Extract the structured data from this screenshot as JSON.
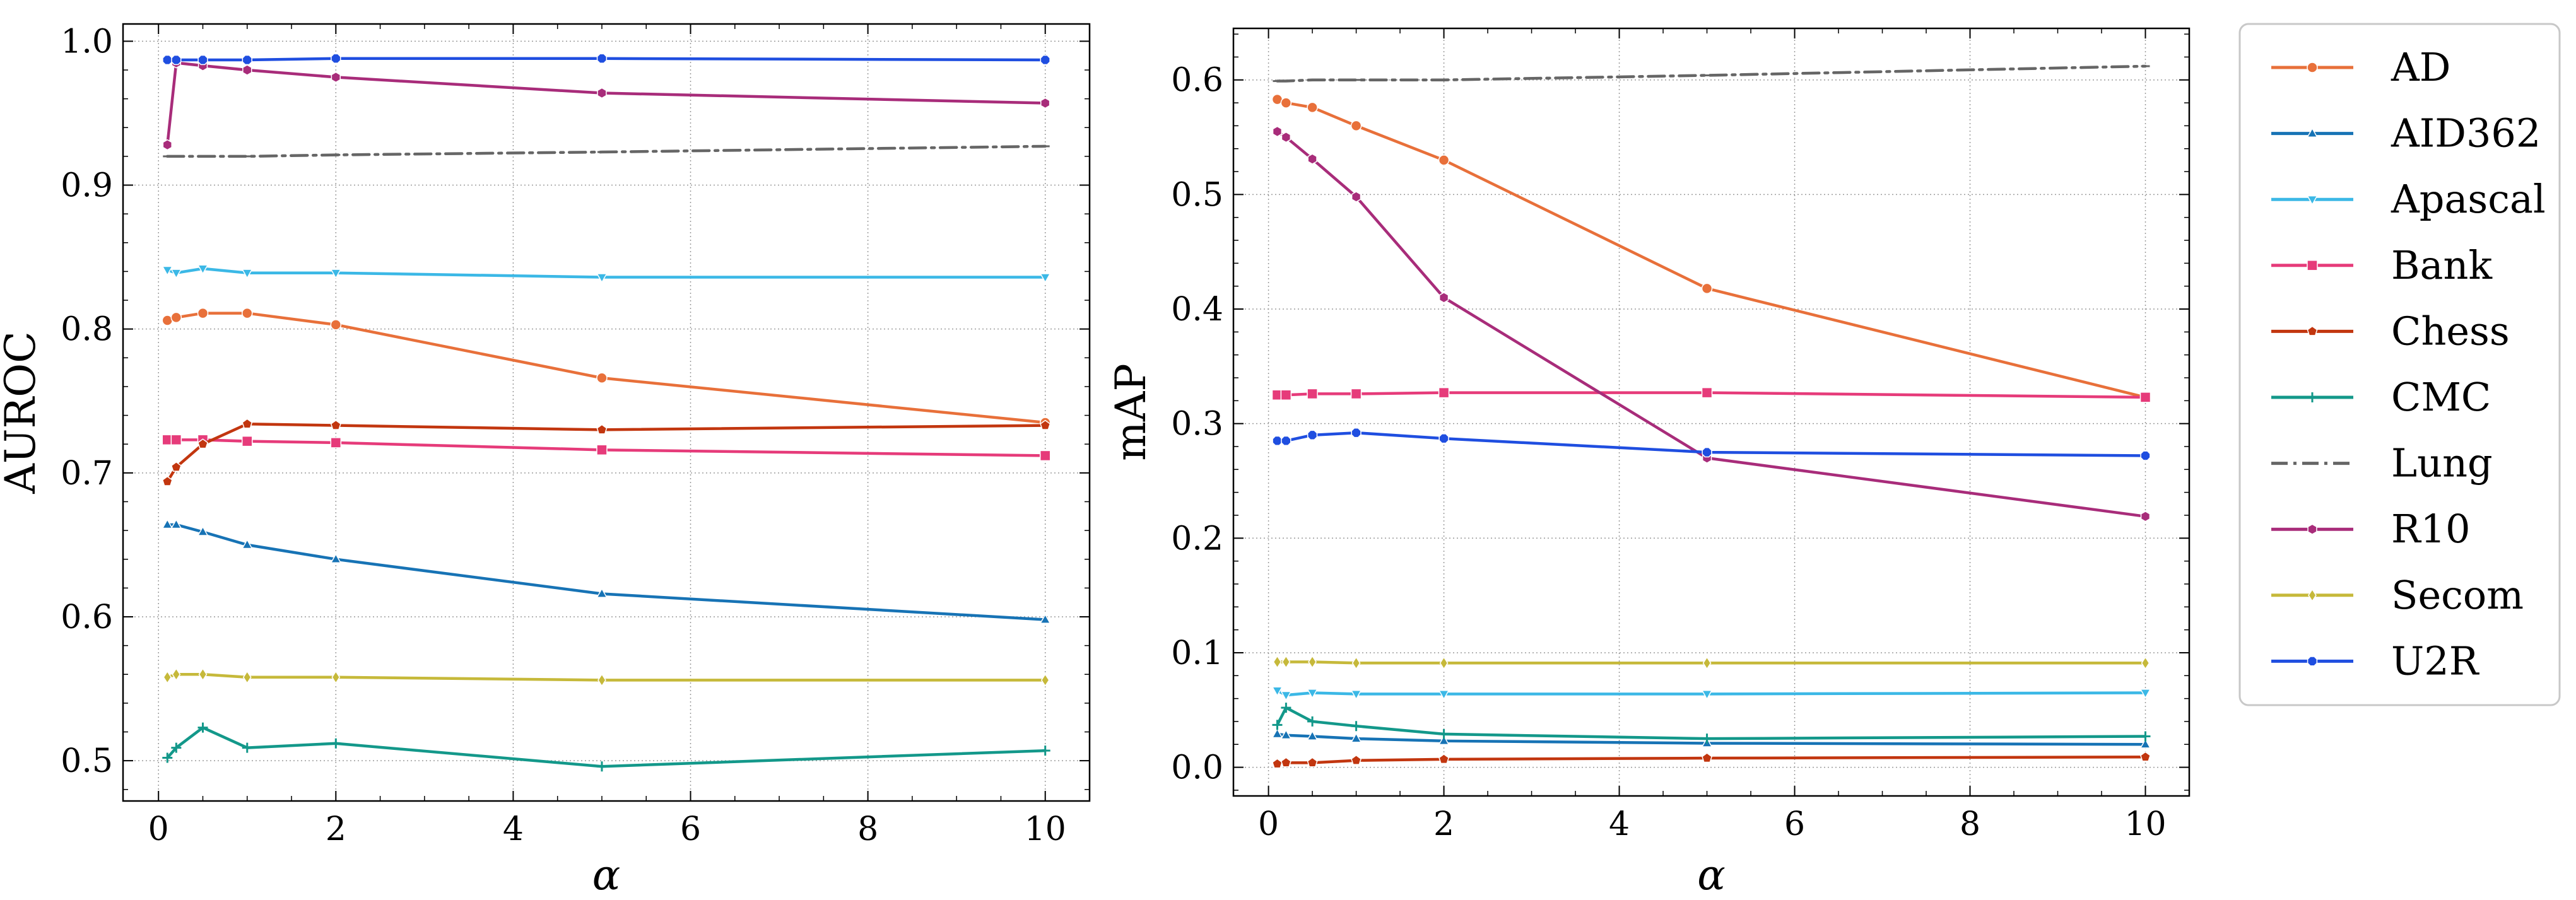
{
  "chart_data": [
    {
      "type": "line",
      "ylabel": "AUROC",
      "xlabel": "α",
      "xlim": [
        -0.4,
        10.5
      ],
      "ylim": [
        0.472,
        1.012
      ],
      "xticks": [
        0,
        2,
        4,
        6,
        8,
        10
      ],
      "xtick_labels": [
        "0",
        "2",
        "4",
        "6",
        "8",
        "10"
      ],
      "yticks": [
        0.5,
        0.6,
        0.7,
        0.8,
        0.9,
        1.0
      ],
      "ytick_labels": [
        "0.5",
        "0.6",
        "0.7",
        "0.8",
        "0.9",
        "1.0"
      ],
      "grid": true,
      "x": [
        0.1,
        0.2,
        0.5,
        1,
        2,
        5,
        10
      ],
      "series": [
        {
          "name": "AD",
          "values": [
            0.806,
            0.808,
            0.811,
            0.811,
            0.803,
            0.766,
            0.735
          ]
        },
        {
          "name": "AID362",
          "values": [
            0.664,
            0.664,
            0.659,
            0.65,
            0.64,
            0.616,
            0.598
          ]
        },
        {
          "name": "Apascal",
          "values": [
            0.841,
            0.839,
            0.842,
            0.839,
            0.839,
            0.836,
            0.836
          ]
        },
        {
          "name": "Bank",
          "values": [
            0.723,
            0.723,
            0.723,
            0.722,
            0.721,
            0.716,
            0.712
          ]
        },
        {
          "name": "Chess",
          "values": [
            0.694,
            0.704,
            0.72,
            0.734,
            0.733,
            0.73,
            0.733
          ]
        },
        {
          "name": "CMC",
          "values": [
            0.502,
            0.509,
            0.523,
            0.509,
            0.512,
            0.496,
            0.507
          ]
        },
        {
          "name": "Lung",
          "values": [
            0.92,
            0.92,
            0.92,
            0.92,
            0.921,
            0.923,
            0.927
          ]
        },
        {
          "name": "R10",
          "values": [
            0.928,
            0.985,
            0.983,
            0.98,
            0.975,
            0.964,
            0.957
          ]
        },
        {
          "name": "Secom",
          "values": [
            0.558,
            0.56,
            0.56,
            0.558,
            0.558,
            0.556,
            0.556
          ]
        },
        {
          "name": "U2R",
          "values": [
            0.987,
            0.987,
            0.987,
            0.987,
            0.988,
            0.988,
            0.987
          ]
        }
      ]
    },
    {
      "type": "line",
      "ylabel": "mAP",
      "xlabel": "α",
      "xlim": [
        -0.4,
        10.5
      ],
      "ylim": [
        -0.025,
        0.645
      ],
      "xticks": [
        0,
        2,
        4,
        6,
        8,
        10
      ],
      "xtick_labels": [
        "0",
        "2",
        "4",
        "6",
        "8",
        "10"
      ],
      "yticks": [
        0.0,
        0.1,
        0.2,
        0.3,
        0.4,
        0.5,
        0.6
      ],
      "ytick_labels": [
        "0.0",
        "0.1",
        "0.2",
        "0.3",
        "0.4",
        "0.5",
        "0.6"
      ],
      "grid": true,
      "x": [
        0.1,
        0.2,
        0.5,
        1,
        2,
        5,
        10
      ],
      "series": [
        {
          "name": "AD",
          "values": [
            0.583,
            0.58,
            0.576,
            0.56,
            0.53,
            0.418,
            0.323
          ]
        },
        {
          "name": "AID362",
          "values": [
            0.029,
            0.028,
            0.027,
            0.025,
            0.023,
            0.021,
            0.02
          ]
        },
        {
          "name": "Apascal",
          "values": [
            0.067,
            0.063,
            0.065,
            0.064,
            0.064,
            0.064,
            0.065
          ]
        },
        {
          "name": "Bank",
          "values": [
            0.325,
            0.325,
            0.326,
            0.326,
            0.327,
            0.327,
            0.323
          ]
        },
        {
          "name": "Chess",
          "values": [
            0.003,
            0.004,
            0.004,
            0.006,
            0.007,
            0.008,
            0.009
          ]
        },
        {
          "name": "CMC",
          "values": [
            0.037,
            0.052,
            0.04,
            0.036,
            0.029,
            0.025,
            0.027
          ]
        },
        {
          "name": "Lung",
          "values": [
            0.599,
            0.599,
            0.6,
            0.6,
            0.6,
            0.604,
            0.612
          ]
        },
        {
          "name": "R10",
          "values": [
            0.555,
            0.55,
            0.531,
            0.498,
            0.41,
            0.27,
            0.219
          ]
        },
        {
          "name": "Secom",
          "values": [
            0.092,
            0.092,
            0.092,
            0.091,
            0.091,
            0.091,
            0.091
          ]
        },
        {
          "name": "U2R",
          "values": [
            0.285,
            0.285,
            0.29,
            0.292,
            0.287,
            0.275,
            0.272
          ]
        }
      ]
    }
  ],
  "legend": {
    "position": "right",
    "entries": [
      {
        "name": "AD",
        "color": "#e8703a",
        "marker": "circle"
      },
      {
        "name": "AID362",
        "color": "#1773b5",
        "marker": "triangle-up"
      },
      {
        "name": "Apascal",
        "color": "#3bb8e6",
        "marker": "triangle-down"
      },
      {
        "name": "Bank",
        "color": "#e63b7a",
        "marker": "square"
      },
      {
        "name": "Chess",
        "color": "#c2360f",
        "marker": "pentagon"
      },
      {
        "name": "CMC",
        "color": "#13988a",
        "marker": "plus"
      },
      {
        "name": "Lung",
        "color": "#666666",
        "marker": "dashdot"
      },
      {
        "name": "R10",
        "color": "#a82c7a",
        "marker": "hexagon"
      },
      {
        "name": "Secom",
        "color": "#c6b93a",
        "marker": "diamond"
      },
      {
        "name": "U2R",
        "color": "#1f4ee0",
        "marker": "octagon"
      }
    ]
  }
}
